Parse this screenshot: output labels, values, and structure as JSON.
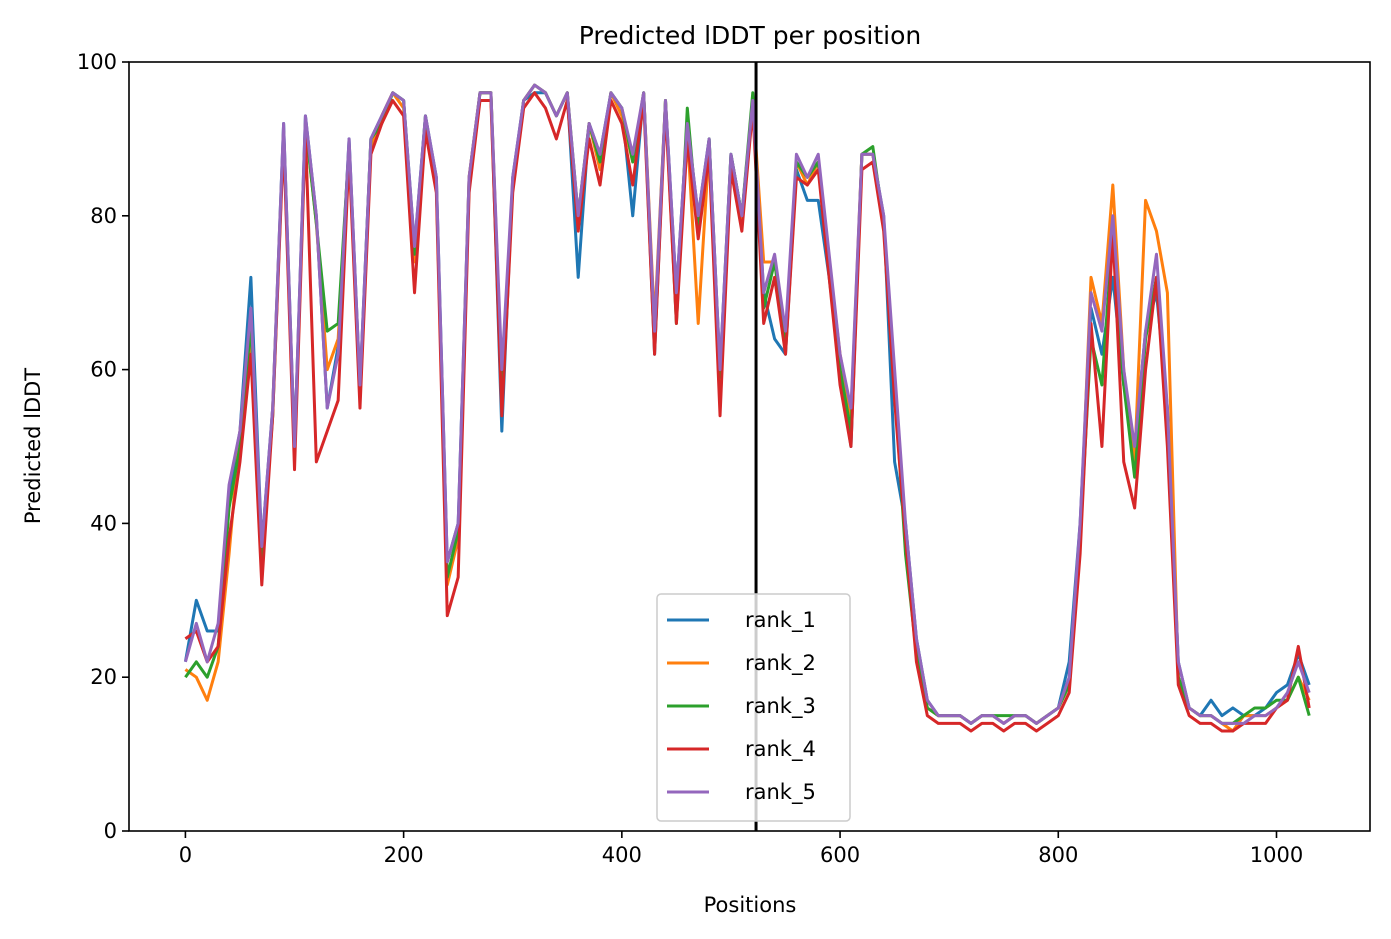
{
  "chart_data": {
    "type": "line",
    "title": "Predicted lDDT per position",
    "xlabel": "Positions",
    "ylabel": "Predicted lDDT",
    "xlim": [
      -51.7,
      1085.7
    ],
    "xticks": [
      0,
      200,
      400,
      600,
      800,
      1000
    ],
    "ylim": [
      0,
      100
    ],
    "yticks": [
      0,
      20,
      40,
      60,
      80,
      100
    ],
    "vlines": [
      523
    ],
    "vline_color": "#000000",
    "legend": "lower center",
    "x": [
      0,
      10,
      20,
      30,
      40,
      50,
      60,
      70,
      80,
      90,
      100,
      110,
      120,
      130,
      140,
      150,
      160,
      170,
      180,
      190,
      200,
      210,
      220,
      230,
      240,
      250,
      260,
      270,
      280,
      290,
      300,
      310,
      320,
      330,
      340,
      350,
      360,
      370,
      380,
      390,
      400,
      410,
      420,
      430,
      440,
      450,
      460,
      470,
      480,
      490,
      500,
      510,
      520,
      530,
      540,
      550,
      560,
      570,
      580,
      590,
      600,
      610,
      620,
      630,
      640,
      650,
      660,
      670,
      680,
      690,
      700,
      710,
      720,
      730,
      740,
      750,
      760,
      770,
      780,
      790,
      800,
      810,
      820,
      830,
      840,
      850,
      860,
      870,
      880,
      890,
      900,
      910,
      920,
      930,
      940,
      950,
      960,
      970,
      980,
      990,
      1000,
      1010,
      1020,
      1030
    ],
    "series": [
      {
        "name": "rank_1",
        "color": "#1f77b4",
        "values": [
          22,
          30,
          26,
          26,
          44,
          52,
          72,
          37,
          55,
          92,
          50,
          93,
          80,
          55,
          63,
          90,
          58,
          90,
          93,
          96,
          95,
          76,
          93,
          85,
          35,
          40,
          85,
          96,
          96,
          52,
          85,
          95,
          96,
          96,
          93,
          96,
          72,
          92,
          88,
          96,
          94,
          80,
          96,
          62,
          95,
          70,
          92,
          80,
          90,
          60,
          88,
          80,
          95,
          70,
          64,
          62,
          86,
          82,
          82,
          72,
          60,
          50,
          88,
          88,
          80,
          48,
          40,
          25,
          17,
          15,
          15,
          15,
          14,
          15,
          15,
          14,
          15,
          15,
          14,
          15,
          16,
          22,
          40,
          68,
          62,
          72,
          58,
          50,
          65,
          70,
          55,
          22,
          16,
          15,
          17,
          15,
          16,
          15,
          15,
          16,
          18,
          19,
          23,
          19
        ]
      },
      {
        "name": "rank_2",
        "color": "#ff7f0e",
        "values": [
          21,
          20,
          17,
          22,
          36,
          52,
          64,
          33,
          55,
          91,
          49,
          92,
          79,
          60,
          64,
          89,
          57,
          89,
          93,
          96,
          94,
          74,
          92,
          84,
          32,
          38,
          85,
          96,
          96,
          58,
          84,
          95,
          97,
          96,
          93,
          96,
          79,
          92,
          86,
          96,
          93,
          87,
          96,
          66,
          95,
          68,
          91,
          66,
          89,
          58,
          87,
          79,
          95,
          74,
          74,
          64,
          87,
          84,
          87,
          74,
          62,
          54,
          88,
          88,
          79,
          58,
          38,
          24,
          16,
          15,
          15,
          15,
          14,
          15,
          15,
          14,
          15,
          15,
          14,
          15,
          16,
          19,
          38,
          72,
          66,
          84,
          60,
          48,
          82,
          78,
          70,
          20,
          16,
          15,
          15,
          14,
          13,
          15,
          15,
          15,
          16,
          17,
          20,
          17
        ]
      },
      {
        "name": "rank_3",
        "color": "#2ca02c",
        "values": [
          20,
          22,
          20,
          24,
          42,
          50,
          66,
          35,
          54,
          91,
          49,
          92,
          79,
          65,
          66,
          89,
          57,
          90,
          92,
          96,
          95,
          75,
          93,
          84,
          33,
          39,
          84,
          96,
          96,
          58,
          84,
          95,
          97,
          96,
          93,
          96,
          80,
          92,
          87,
          96,
          94,
          87,
          96,
          64,
          95,
          66,
          94,
          78,
          90,
          59,
          88,
          80,
          96,
          68,
          74,
          64,
          87,
          85,
          87,
          74,
          60,
          52,
          88,
          89,
          79,
          58,
          36,
          23,
          16,
          15,
          15,
          15,
          14,
          15,
          15,
          15,
          15,
          15,
          14,
          15,
          16,
          19,
          38,
          64,
          58,
          78,
          58,
          46,
          64,
          72,
          54,
          20,
          16,
          15,
          15,
          14,
          14,
          15,
          16,
          16,
          17,
          17,
          20,
          15
        ]
      },
      {
        "name": "rank_4",
        "color": "#d62728",
        "values": [
          25,
          26,
          22,
          24,
          38,
          48,
          62,
          32,
          54,
          90,
          47,
          91,
          48,
          52,
          56,
          88,
          55,
          88,
          92,
          95,
          93,
          70,
          91,
          83,
          28,
          33,
          83,
          95,
          95,
          54,
          83,
          94,
          96,
          94,
          90,
          95,
          78,
          90,
          84,
          95,
          92,
          84,
          95,
          62,
          94,
          66,
          90,
          77,
          88,
          54,
          86,
          78,
          94,
          66,
          72,
          62,
          85,
          84,
          86,
          72,
          58,
          50,
          86,
          87,
          78,
          56,
          38,
          22,
          15,
          14,
          14,
          14,
          13,
          14,
          14,
          13,
          14,
          14,
          13,
          14,
          15,
          18,
          36,
          66,
          50,
          78,
          48,
          42,
          60,
          72,
          50,
          19,
          15,
          14,
          14,
          13,
          13,
          14,
          14,
          14,
          16,
          17,
          24,
          16
        ]
      },
      {
        "name": "rank_5",
        "color": "#9467bd",
        "values": [
          22,
          27,
          22,
          27,
          45,
          52,
          68,
          37,
          55,
          92,
          50,
          93,
          80,
          55,
          62,
          90,
          58,
          90,
          93,
          96,
          95,
          76,
          93,
          85,
          35,
          40,
          85,
          96,
          96,
          60,
          85,
          95,
          97,
          96,
          93,
          96,
          80,
          92,
          88,
          96,
          94,
          88,
          96,
          65,
          95,
          70,
          92,
          80,
          90,
          60,
          88,
          80,
          95,
          70,
          75,
          65,
          88,
          85,
          88,
          75,
          62,
          55,
          88,
          88,
          80,
          60,
          40,
          25,
          17,
          15,
          15,
          15,
          14,
          15,
          15,
          14,
          15,
          15,
          14,
          15,
          16,
          20,
          40,
          70,
          65,
          80,
          60,
          50,
          65,
          75,
          55,
          22,
          16,
          15,
          15,
          14,
          14,
          14,
          15,
          15,
          16,
          18,
          22,
          18
        ]
      }
    ]
  }
}
